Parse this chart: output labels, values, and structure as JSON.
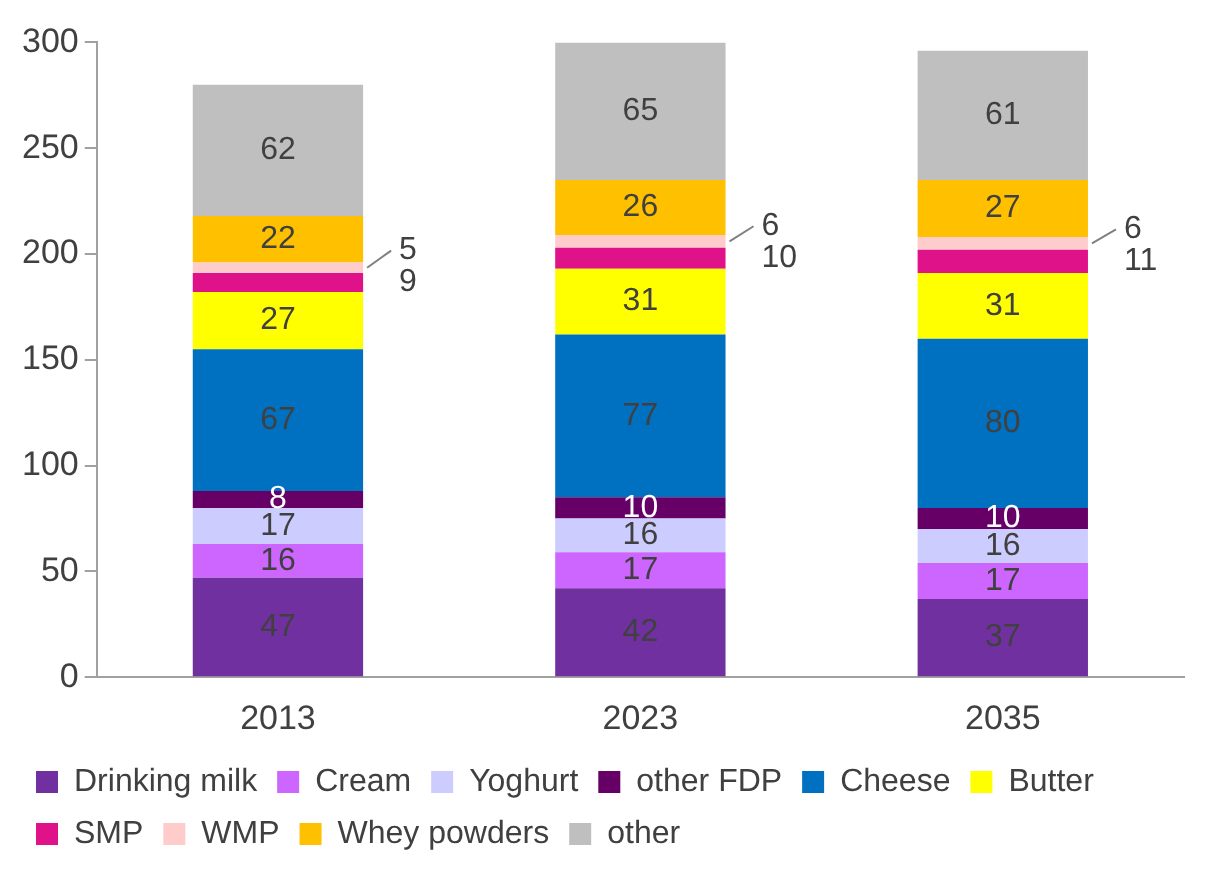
{
  "chart_data": {
    "type": "bar",
    "stacked": true,
    "categories": [
      "2013",
      "2023",
      "2035"
    ],
    "ylim": [
      0,
      300
    ],
    "yticks": [
      0,
      50,
      100,
      150,
      200,
      250,
      300
    ],
    "grid": false,
    "legend": "bottom",
    "data_labels": true,
    "series": [
      {
        "name": "Drinking milk",
        "color": "#7030a0",
        "values": [
          47,
          42,
          37
        ]
      },
      {
        "name": "Cream",
        "color": "#cc66ff",
        "values": [
          16,
          17,
          17
        ]
      },
      {
        "name": "Yoghurt",
        "color": "#ccccff",
        "values": [
          17,
          16,
          16
        ]
      },
      {
        "name": "other FDP",
        "color": "#660066",
        "values": [
          8,
          10,
          10
        ]
      },
      {
        "name": "Cheese",
        "color": "#0070c0",
        "values": [
          67,
          77,
          80
        ]
      },
      {
        "name": "Butter",
        "color": "#ffff00",
        "values": [
          27,
          31,
          31
        ]
      },
      {
        "name": "SMP",
        "color": "#e0128a",
        "values": [
          9,
          10,
          11
        ]
      },
      {
        "name": "WMP",
        "color": "#ffcccc",
        "values": [
          5,
          6,
          6
        ]
      },
      {
        "name": "Whey powders",
        "color": "#ffc000",
        "values": [
          22,
          26,
          27
        ]
      },
      {
        "name": "other",
        "color": "#bfbfbf",
        "values": [
          62,
          65,
          61
        ]
      }
    ]
  }
}
